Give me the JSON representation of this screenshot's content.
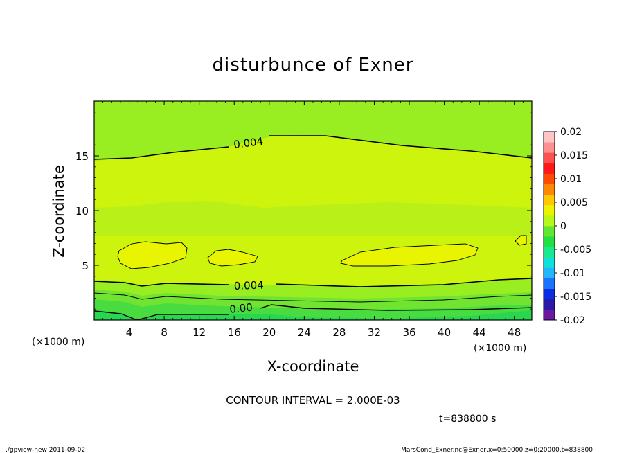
{
  "chart_data": {
    "type": "contour",
    "title": "disturbunce of Exner",
    "xlabel": "X-coordinate",
    "ylabel": "Z-coordinate",
    "x_unit_left": "(×1000 m)",
    "x_unit_right": "(×1000 m)",
    "xlim": [
      0,
      50
    ],
    "ylim": [
      0,
      20
    ],
    "x_ticks": [
      4,
      8,
      12,
      16,
      20,
      24,
      28,
      32,
      36,
      40,
      44,
      48
    ],
    "y_ticks": [
      5,
      10,
      15
    ],
    "contour_labels": [
      "0.004",
      "0.004",
      "0.00"
    ],
    "contour_interval_text": "CONTOUR INTERVAL = 2.000E-03",
    "time_text": "t=838800 s",
    "colorbar": {
      "range": [
        -0.02,
        0.02
      ],
      "tick_labels": [
        "0.02",
        "0.015",
        "0.01",
        "0.005",
        "0",
        "-0.005",
        "-0.01",
        "-0.015",
        "-0.02"
      ],
      "colors": [
        "#6a1aa0",
        "#2a18a6",
        "#0a2ee0",
        "#1a72ff",
        "#22b6ff",
        "#10e0d8",
        "#18e890",
        "#22e040",
        "#5ee830",
        "#b8f818",
        "#eef200",
        "#ffc800",
        "#ff8800",
        "#ff4a00",
        "#ff1818",
        "#ff5050",
        "#ff9090",
        "#ffc4c4"
      ]
    },
    "field_colors": {
      "band_highest": "#e8f400",
      "band_high": "#ccf40c",
      "band_upper_mid": "#b8f018",
      "band_mid": "#98ee20",
      "band_lower_mid": "#70e430",
      "band_low": "#48dc40",
      "band_lowest": "#28d650"
    }
  },
  "footer": {
    "left": "./gpview-new   2011-09-02",
    "right": "MarsCond_Exner.nc@Exner,x=0:50000,z=0:20000,t=838800"
  }
}
